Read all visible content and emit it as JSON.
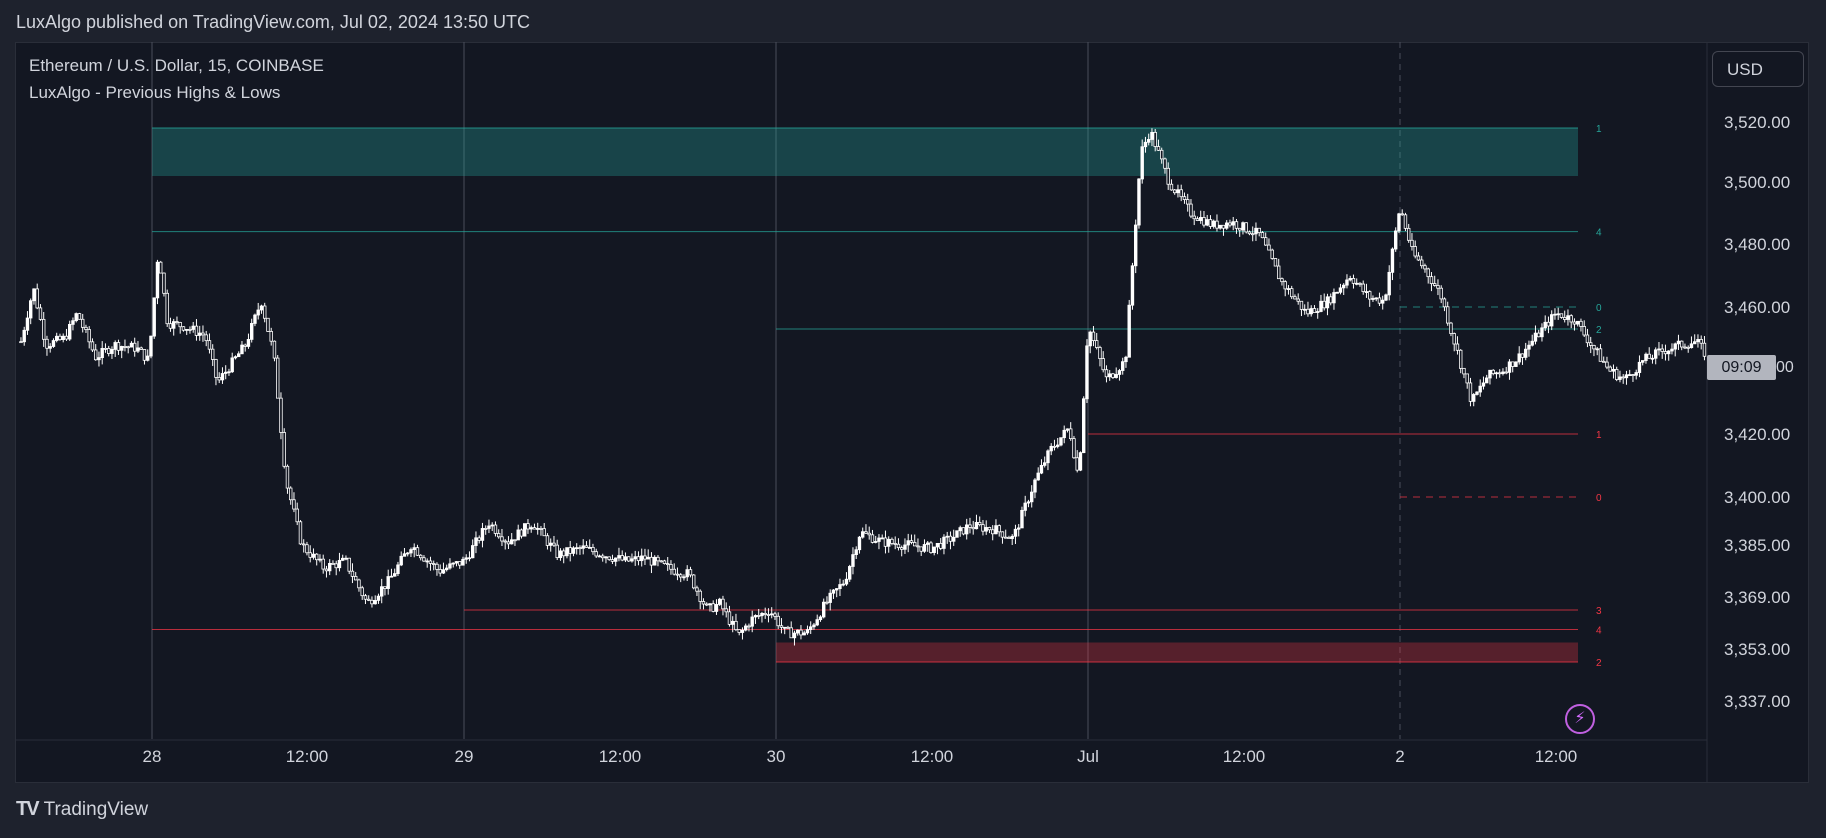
{
  "header": {
    "published": "LuxAlgo published on TradingView.com, Jul 02, 2024 13:50 UTC"
  },
  "legend": {
    "symbol": "Ethereum / U.S. Dollar, 15, COINBASE",
    "indicator": "LuxAlgo - Previous Highs & Lows"
  },
  "price_scale": {
    "currency": "USD",
    "countdown": "09:09",
    "countdown_suffix": "00"
  },
  "footer": {
    "brand": "TradingView",
    "logo_icon": "tradingview-logo-icon"
  },
  "colors": {
    "background": "#131722",
    "candle": "#ffffff",
    "highs": "#26a69a",
    "lows": "#f23645",
    "grid_session": "#4a4e5a"
  },
  "chart_data": {
    "type": "candlestick",
    "interval": "15",
    "x_tick_labels": [
      "28",
      "12:00",
      "29",
      "12:00",
      "30",
      "12:00",
      "Jul",
      "12:00",
      "2",
      "12:00"
    ],
    "y_tick_labels": [
      "3,520.00",
      "3,500.00",
      "3,480.00",
      "3,460.00",
      "3,420.00",
      "3,400.00",
      "3,385.00",
      "3,369.00",
      "3,353.00",
      "3,337.00"
    ],
    "y_tick_values": [
      3520,
      3500,
      3480,
      3460,
      3440,
      3420,
      3400,
      3385,
      3369,
      3353,
      3337
    ],
    "y_axis_scale": [
      3337,
      3353,
      3369,
      3385,
      3400,
      3420,
      3440,
      3460,
      3480,
      3500,
      3520
    ],
    "x_range_days": [
      27.6,
      28.6
    ],
    "close_path": [
      {
        "t": 27.58,
        "p": 3449
      },
      {
        "t": 27.62,
        "p": 3466
      },
      {
        "t": 27.66,
        "p": 3448
      },
      {
        "t": 27.72,
        "p": 3450
      },
      {
        "t": 27.76,
        "p": 3458
      },
      {
        "t": 27.82,
        "p": 3444
      },
      {
        "t": 27.88,
        "p": 3448
      },
      {
        "t": 27.95,
        "p": 3447
      },
      {
        "t": 27.99,
        "p": 3443
      },
      {
        "t": 28.02,
        "p": 3478
      },
      {
        "t": 28.05,
        "p": 3455
      },
      {
        "t": 28.1,
        "p": 3454
      },
      {
        "t": 28.17,
        "p": 3451
      },
      {
        "t": 28.21,
        "p": 3436
      },
      {
        "t": 28.3,
        "p": 3448
      },
      {
        "t": 28.35,
        "p": 3462
      },
      {
        "t": 28.39,
        "p": 3445
      },
      {
        "t": 28.43,
        "p": 3405
      },
      {
        "t": 28.48,
        "p": 3385
      },
      {
        "t": 28.55,
        "p": 3378
      },
      {
        "t": 28.62,
        "p": 3380
      },
      {
        "t": 28.69,
        "p": 3367
      },
      {
        "t": 28.76,
        "p": 3374
      },
      {
        "t": 28.83,
        "p": 3385
      },
      {
        "t": 28.92,
        "p": 3377
      },
      {
        "t": 29.0,
        "p": 3380
      },
      {
        "t": 29.08,
        "p": 3392
      },
      {
        "t": 29.14,
        "p": 3386
      },
      {
        "t": 29.22,
        "p": 3392
      },
      {
        "t": 29.3,
        "p": 3382
      },
      {
        "t": 29.38,
        "p": 3384
      },
      {
        "t": 29.45,
        "p": 3382
      },
      {
        "t": 29.52,
        "p": 3380
      },
      {
        "t": 29.58,
        "p": 3381
      },
      {
        "t": 29.65,
        "p": 3378
      },
      {
        "t": 29.72,
        "p": 3376
      },
      {
        "t": 29.78,
        "p": 3365
      },
      {
        "t": 29.82,
        "p": 3367
      },
      {
        "t": 29.88,
        "p": 3357
      },
      {
        "t": 29.92,
        "p": 3362
      },
      {
        "t": 29.98,
        "p": 3365
      },
      {
        "t": 30.03,
        "p": 3358
      },
      {
        "t": 30.1,
        "p": 3358
      },
      {
        "t": 30.16,
        "p": 3367
      },
      {
        "t": 30.22,
        "p": 3374
      },
      {
        "t": 30.27,
        "p": 3389
      },
      {
        "t": 30.34,
        "p": 3386
      },
      {
        "t": 30.42,
        "p": 3385
      },
      {
        "t": 30.5,
        "p": 3384
      },
      {
        "t": 30.56,
        "p": 3387
      },
      {
        "t": 30.62,
        "p": 3391
      },
      {
        "t": 30.7,
        "p": 3390
      },
      {
        "t": 30.76,
        "p": 3387
      },
      {
        "t": 30.83,
        "p": 3405
      },
      {
        "t": 30.88,
        "p": 3415
      },
      {
        "t": 30.94,
        "p": 3422
      },
      {
        "t": 30.97,
        "p": 3406
      },
      {
        "t": 31.0,
        "p": 3454
      },
      {
        "t": 31.06,
        "p": 3437
      },
      {
        "t": 31.12,
        "p": 3443
      },
      {
        "t": 31.17,
        "p": 3510
      },
      {
        "t": 31.2,
        "p": 3517
      },
      {
        "t": 31.26,
        "p": 3500
      },
      {
        "t": 31.33,
        "p": 3490
      },
      {
        "t": 31.4,
        "p": 3486
      },
      {
        "t": 31.46,
        "p": 3487
      },
      {
        "t": 31.55,
        "p": 3483
      },
      {
        "t": 31.62,
        "p": 3468
      },
      {
        "t": 31.7,
        "p": 3458
      },
      {
        "t": 31.77,
        "p": 3462
      },
      {
        "t": 31.84,
        "p": 3470
      },
      {
        "t": 31.9,
        "p": 3463
      },
      {
        "t": 31.95,
        "p": 3462
      },
      {
        "t": 32.0,
        "p": 3492
      },
      {
        "t": 32.04,
        "p": 3477
      },
      {
        "t": 32.08,
        "p": 3472
      },
      {
        "t": 32.13,
        "p": 3464
      },
      {
        "t": 32.18,
        "p": 3447
      },
      {
        "t": 32.23,
        "p": 3430
      },
      {
        "t": 32.28,
        "p": 3438
      },
      {
        "t": 32.33,
        "p": 3440
      },
      {
        "t": 32.38,
        "p": 3444
      },
      {
        "t": 32.44,
        "p": 3451
      },
      {
        "t": 32.5,
        "p": 3458
      },
      {
        "t": 32.56,
        "p": 3456
      },
      {
        "t": 32.62,
        "p": 3447
      },
      {
        "t": 32.67,
        "p": 3440
      },
      {
        "t": 32.72,
        "p": 3437
      },
      {
        "t": 32.78,
        "p": 3443
      },
      {
        "t": 32.84,
        "p": 3446
      },
      {
        "t": 32.9,
        "p": 3448
      },
      {
        "t": 32.95,
        "p": 3449
      },
      {
        "t": 32.98,
        "p": 3445
      }
    ],
    "indicator_levels": {
      "highs": [
        {
          "label": "1",
          "price": 3518,
          "style": "zone",
          "zone_low": 3502
        },
        {
          "label": "4",
          "price": 3484,
          "style": "solid"
        },
        {
          "label": "0",
          "price": 3460,
          "style": "dashed"
        },
        {
          "label": "2",
          "price": 3453,
          "style": "solid"
        }
      ],
      "lows": [
        {
          "label": "1",
          "price": 3420,
          "style": "solid"
        },
        {
          "label": "0",
          "price": 3400,
          "style": "dashed"
        },
        {
          "label": "3",
          "price": 3365,
          "style": "solid"
        },
        {
          "label": "4",
          "price": 3359,
          "style": "solid"
        },
        {
          "label": "2",
          "price": 3349,
          "style": "zone",
          "zone_high": 3355
        }
      ]
    }
  }
}
